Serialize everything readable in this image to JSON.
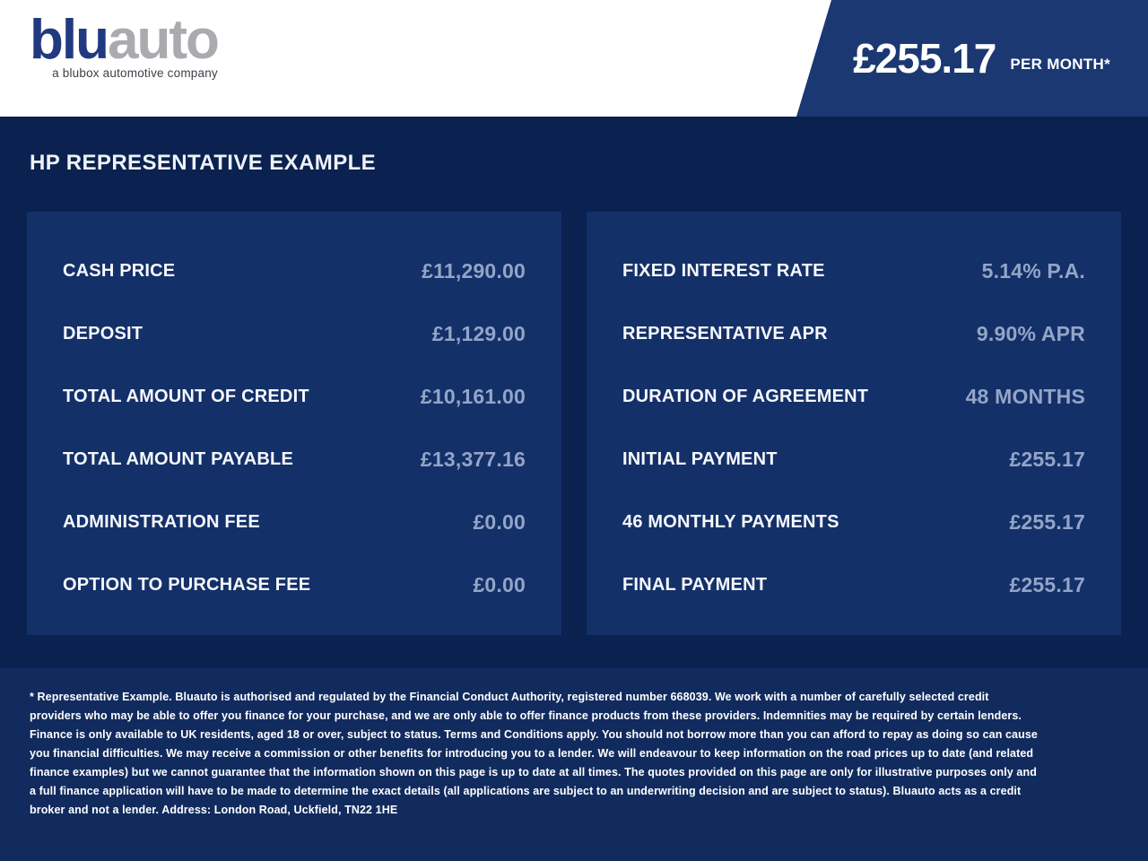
{
  "header": {
    "logo": {
      "blu": "blu",
      "auto": "auto",
      "tagline": "a blubox automotive company"
    },
    "price": {
      "amount": "£255.17",
      "per": "PER MONTH*"
    }
  },
  "main": {
    "heading": "HP REPRESENTATIVE EXAMPLE",
    "left_panel": {
      "rows": [
        {
          "label": "CASH PRICE",
          "value": "£11,290.00"
        },
        {
          "label": "DEPOSIT",
          "value": "£1,129.00"
        },
        {
          "label": "TOTAL AMOUNT OF CREDIT",
          "value": "£10,161.00"
        },
        {
          "label": "TOTAL AMOUNT PAYABLE",
          "value": "£13,377.16"
        },
        {
          "label": "ADMINISTRATION FEE",
          "value": "£0.00"
        },
        {
          "label": "OPTION TO PURCHASE FEE",
          "value": "£0.00"
        }
      ]
    },
    "right_panel": {
      "rows": [
        {
          "label": "FIXED INTEREST RATE",
          "value": "5.14% P.A."
        },
        {
          "label": "REPRESENTATIVE APR",
          "value": "9.90% APR"
        },
        {
          "label": "DURATION OF AGREEMENT",
          "value": "48 MONTHS"
        },
        {
          "label": "INITIAL PAYMENT",
          "value": "£255.17"
        },
        {
          "label": "46 MONTHLY PAYMENTS",
          "value": "£255.17"
        },
        {
          "label": "FINAL PAYMENT",
          "value": "£255.17"
        }
      ]
    }
  },
  "footer": {
    "disclaimer": "* Representative Example. Bluauto is authorised and regulated by the Financial Conduct Authority, registered number 668039. We work with a number of carefully selected credit providers who may be able to offer you finance for your purchase, and we are only able to offer finance products from these providers. Indemnities may be required by certain lenders. Finance is only available to UK residents, aged 18 or over, subject to status. Terms and Conditions apply. You should not borrow more than you can afford to repay as doing so can cause you financial difficulties. We may receive a commission or other benefits for introducing you to a lender. We will endeavour to keep information on the road prices up to date (and related finance examples) but we cannot guarantee that the information shown on this page is up to date at all times. The quotes provided on this page are only for illustrative purposes only and a full finance application will have to be made to determine the exact details (all applications are subject to an underwriting decision and are subject to status). Bluauto acts as a credit broker and not a lender. Address: London Road, Uckfield, TN22 1HE"
  },
  "colors": {
    "header_background": "#ffffff",
    "logo_blue": "#213a7f",
    "logo_gray": "#a9abae",
    "price_flag_blue": "#1b3873",
    "main_background": "#0b2150",
    "panel_background": "#143069",
    "footer_background": "#112b5e",
    "value_text": "#93a5c7"
  }
}
